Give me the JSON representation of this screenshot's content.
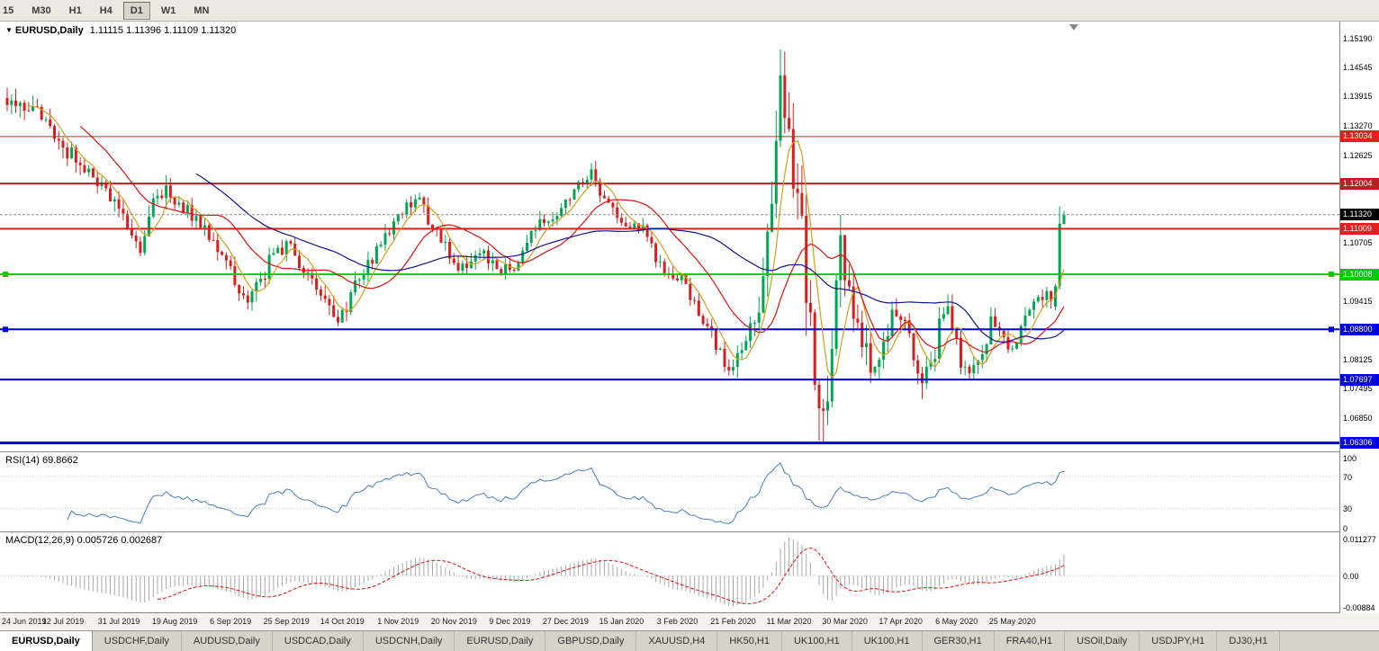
{
  "icons": {
    "dropdown": "▼"
  },
  "toolbar": {
    "timeframes": [
      "15",
      "M30",
      "H1",
      "H4",
      "D1",
      "W1",
      "MN"
    ],
    "active_timeframe": "D1"
  },
  "chart": {
    "title_symbol": "EURUSD,Daily",
    "ohlc_text": "1.11115 1.11396 1.11109 1.11320",
    "rsi_text": "RSI(14) 69.8662",
    "macd_text": "MACD(12,26,9) 0.005726 0.002687"
  },
  "chart_data": {
    "type": "candlestick",
    "symbol": "EURUSD",
    "period": "Daily",
    "title": "EURUSD,Daily",
    "num_candles": 247,
    "candles_per_label": 13,
    "x_labels": [
      "24 Jun 2019",
      "12 Jul 2019",
      "31 Jul 2019",
      "19 Aug 2019",
      "6 Sep 2019",
      "25 Sep 2019",
      "14 Oct 2019",
      "1 Nov 2019",
      "20 Nov 2019",
      "9 Dec 2019",
      "27 Dec 2019",
      "15 Jan 2020",
      "3 Feb 2020",
      "21 Feb 2020",
      "11 Mar 2020",
      "30 Mar 2020",
      "17 Apr 2020",
      "6 May 2020",
      "25 May 2020"
    ],
    "price_axis": {
      "min": 1.061,
      "max": 1.1556,
      "ticks": [
        "1.15190",
        "1.14545",
        "1.13915",
        "1.13270",
        "1.12625",
        "1.10705",
        "1.09415",
        "1.08125",
        "1.07495",
        "1.06850"
      ]
    },
    "current_price": 1.1132,
    "current_price_label": "1.11320",
    "ohlc": {
      "open": 1.11115,
      "high": 1.11396,
      "low": 1.11109,
      "close": 1.1132
    },
    "levels": [
      {
        "price": 1.13034,
        "label": "1.13034",
        "color": "#e31e1e",
        "thickness": 1,
        "handles": false
      },
      {
        "price": 1.12004,
        "label": "1.12004",
        "color": "#b22222",
        "thickness": 2,
        "handles": false
      },
      {
        "price": 1.11009,
        "label": "1.11009",
        "color": "#e31e1e",
        "thickness": 2,
        "handles": false
      },
      {
        "price": 1.10008,
        "label": "1.10008",
        "color": "#00cc00",
        "thickness": 2,
        "handles": true
      },
      {
        "price": 1.088,
        "label": "1.08800",
        "color": "#0000e0",
        "thickness": 2,
        "handles": true
      },
      {
        "price": 1.07697,
        "label": "1.07697",
        "color": "#0000e0",
        "thickness": 2,
        "handles": false
      },
      {
        "price": 1.06306,
        "label": "1.06306",
        "color": "#0000e0",
        "thickness": 3,
        "handles": false
      }
    ],
    "moving_averages": [
      {
        "period": 6,
        "color": "#d4a017"
      },
      {
        "period": 18,
        "color": "#e01010"
      },
      {
        "period": 45,
        "color": "#14148c"
      }
    ],
    "candle_colors": {
      "up": "#00a651",
      "down": "#d81e1e"
    },
    "price_path_anchors": [
      [
        0,
        1.139,
        0.005
      ],
      [
        6,
        1.136,
        0.0045
      ],
      [
        14,
        1.127,
        0.0045
      ],
      [
        21,
        1.1205,
        0.004
      ],
      [
        27,
        1.1135,
        0.0045
      ],
      [
        31,
        1.1045,
        0.005
      ],
      [
        35,
        1.1195,
        0.005
      ],
      [
        40,
        1.1155,
        0.004
      ],
      [
        47,
        1.1085,
        0.004
      ],
      [
        52,
        1.1005,
        0.004
      ],
      [
        56,
        1.0935,
        0.004
      ],
      [
        62,
        1.1045,
        0.0045
      ],
      [
        65,
        1.107,
        0.004
      ],
      [
        70,
        1.099,
        0.004
      ],
      [
        75,
        1.093,
        0.004
      ],
      [
        77,
        1.0895,
        0.004
      ],
      [
        82,
        1.099,
        0.004
      ],
      [
        87,
        1.106,
        0.004
      ],
      [
        91,
        1.114,
        0.004
      ],
      [
        96,
        1.116,
        0.0035
      ],
      [
        101,
        1.1075,
        0.0035
      ],
      [
        106,
        1.101,
        0.0035
      ],
      [
        110,
        1.106,
        0.0035
      ],
      [
        114,
        1.1005,
        0.0035
      ],
      [
        118,
        1.1015,
        0.003
      ],
      [
        123,
        1.1105,
        0.0035
      ],
      [
        128,
        1.112,
        0.003
      ],
      [
        132,
        1.1185,
        0.003
      ],
      [
        136,
        1.122,
        0.0035
      ],
      [
        139,
        1.116,
        0.0035
      ],
      [
        143,
        1.111,
        0.003
      ],
      [
        148,
        1.1095,
        0.003
      ],
      [
        152,
        1.102,
        0.003
      ],
      [
        157,
        1.0995,
        0.003
      ],
      [
        161,
        1.092,
        0.0035
      ],
      [
        165,
        1.085,
        0.0035
      ],
      [
        168,
        1.0795,
        0.004
      ],
      [
        172,
        1.0855,
        0.005
      ],
      [
        175,
        1.0925,
        0.0065
      ],
      [
        177,
        1.1055,
        0.009
      ],
      [
        179,
        1.128,
        0.013
      ],
      [
        180,
        1.142,
        0.016
      ],
      [
        182,
        1.13,
        0.014
      ],
      [
        184,
        1.118,
        0.013
      ],
      [
        186,
        1.1,
        0.014
      ],
      [
        188,
        1.08,
        0.014
      ],
      [
        189,
        1.069,
        0.015
      ],
      [
        191,
        1.075,
        0.013
      ],
      [
        193,
        1.095,
        0.012
      ],
      [
        194,
        1.106,
        0.011
      ],
      [
        196,
        1.1,
        0.009
      ],
      [
        198,
        1.088,
        0.008
      ],
      [
        201,
        1.08,
        0.007
      ],
      [
        204,
        1.086,
        0.006
      ],
      [
        207,
        1.093,
        0.0055
      ],
      [
        210,
        1.087,
        0.005
      ],
      [
        213,
        1.076,
        0.005
      ],
      [
        216,
        1.083,
        0.005
      ],
      [
        218,
        1.0935,
        0.0055
      ],
      [
        220,
        1.089,
        0.005
      ],
      [
        222,
        1.0805,
        0.0045
      ],
      [
        225,
        1.0795,
        0.004
      ],
      [
        227,
        1.0815,
        0.004
      ],
      [
        229,
        1.09,
        0.004
      ],
      [
        231,
        1.0865,
        0.004
      ],
      [
        233,
        1.083,
        0.004
      ],
      [
        235,
        1.0855,
        0.004
      ],
      [
        237,
        1.09,
        0.004
      ],
      [
        239,
        1.0945,
        0.004
      ],
      [
        241,
        1.096,
        0.0045
      ],
      [
        243,
        1.095,
        0.004
      ],
      [
        246,
        1.1132,
        0.004
      ]
    ],
    "candle_overrides": [
      {
        "i": 168,
        "l": 1.0778
      },
      {
        "i": 180,
        "h": 1.1495
      },
      {
        "i": 189,
        "l": 1.0636
      },
      {
        "i": 213,
        "l": 1.0727
      },
      {
        "i": 244,
        "o": 1.093,
        "h": 1.098,
        "l": 1.0922,
        "c": 1.0975
      },
      {
        "i": 245,
        "o": 1.0975,
        "h": 1.115,
        "l": 1.0968,
        "c": 1.1112
      },
      {
        "i": 246,
        "o": 1.11115,
        "h": 1.11396,
        "l": 1.11109,
        "c": 1.1132
      }
    ],
    "indicators": {
      "rsi": {
        "period": 14,
        "value": 69.8662,
        "levels": [
          70,
          30
        ],
        "axis": [
          "100",
          "70",
          "30",
          "0"
        ],
        "color": "#4a7ebb"
      },
      "macd": {
        "fast": 12,
        "slow": 26,
        "signal": 9,
        "value": 0.005726,
        "signal_value": 0.002687,
        "axis_top": "0.011277",
        "axis_zero": "0.00",
        "axis_bottom": "-0.00884",
        "hist_color": "#a8a8a8",
        "signal_color": "#e01010"
      }
    }
  },
  "tabs": {
    "items": [
      "EURUSD,Daily",
      "USDCHF,Daily",
      "AUDUSD,Daily",
      "USDCAD,Daily",
      "USDCNH,Daily",
      "EURUSD,Daily",
      "GBPUSD,Daily",
      "XAUUSD,H4",
      "HK50,H1",
      "UK100,H1",
      "UK100,H1",
      "GER30,H1",
      "FRA40,H1",
      "USOil,Daily",
      "USDJPY,H1",
      "DJ30,H1"
    ],
    "active_index": 0
  }
}
